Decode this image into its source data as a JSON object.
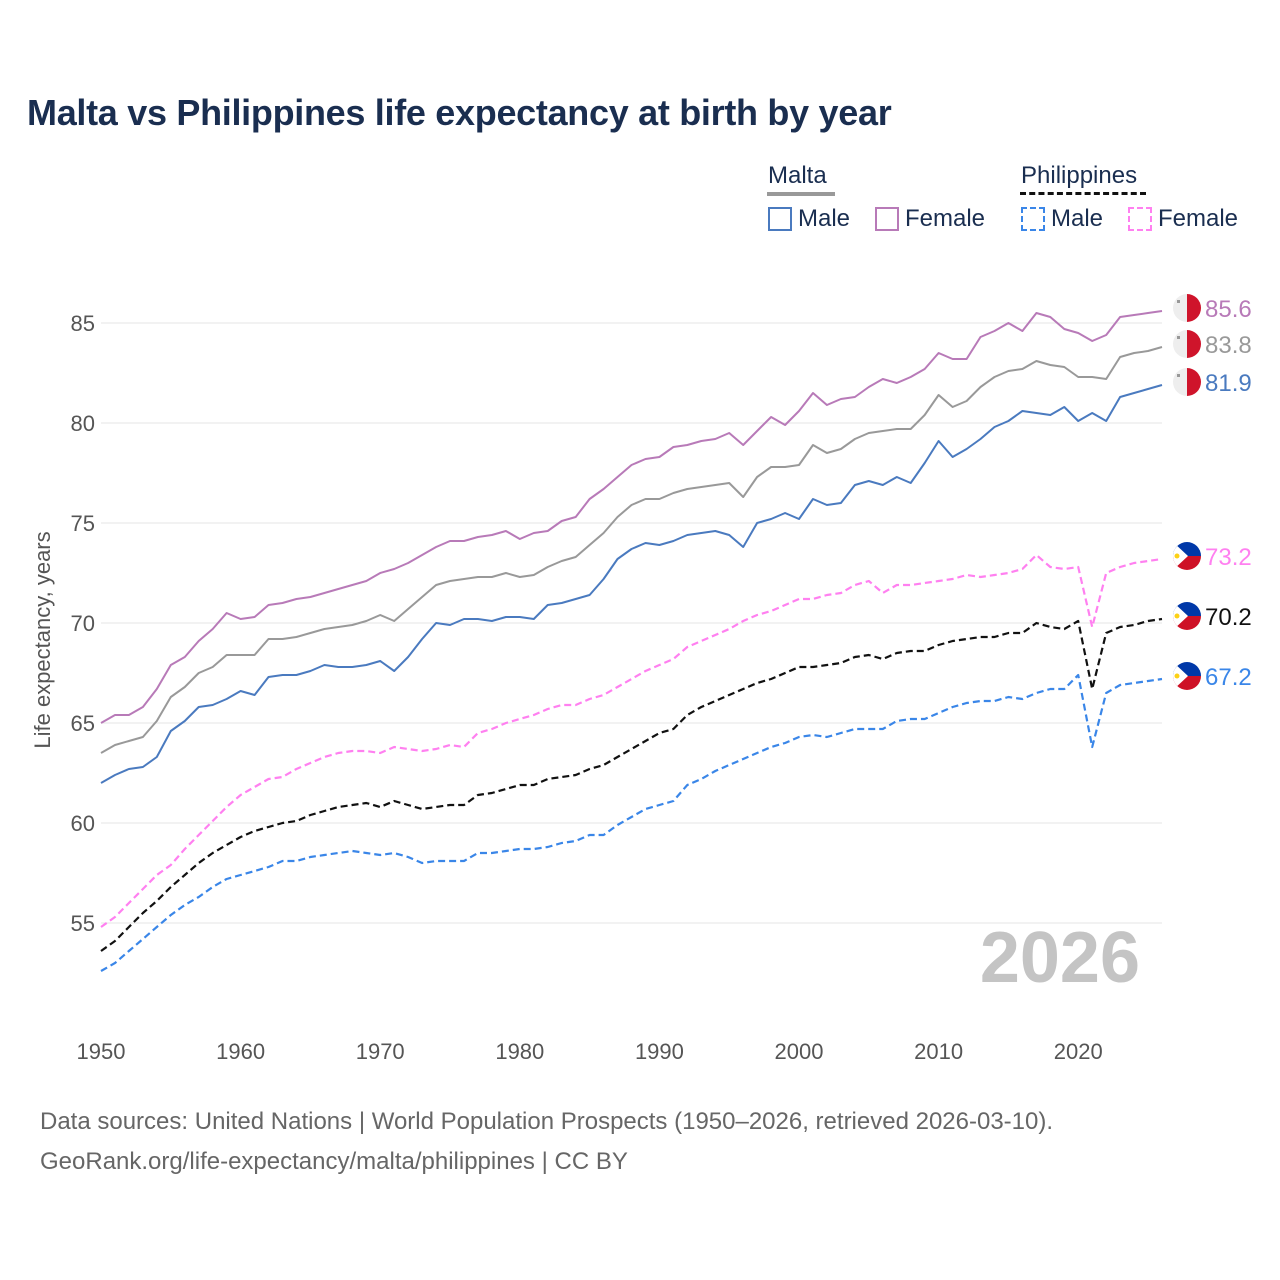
{
  "title": "Malta vs Philippines life expectancy at birth by year",
  "legend": {
    "groups": [
      {
        "name": "Malta",
        "underline_color": "#999999",
        "underline_style": "solid",
        "items": [
          {
            "label": "Male",
            "color": "#4a7abf",
            "style": "solid"
          },
          {
            "label": "Female",
            "color": "#b87ab8",
            "style": "solid"
          }
        ]
      },
      {
        "name": "Philippines",
        "underline_color": "#111111",
        "underline_style": "dashed",
        "items": [
          {
            "label": "Male",
            "color": "#3a86e8",
            "style": "dashed"
          },
          {
            "label": "Female",
            "color": "#ff80f0",
            "style": "dashed"
          }
        ]
      }
    ]
  },
  "chart_data": {
    "type": "line",
    "title": "Malta vs Philippines life expectancy at birth by year",
    "xlabel": "",
    "ylabel": "Life expectancy, years",
    "xlim": [
      1950,
      2026
    ],
    "ylim": [
      50.5,
      88
    ],
    "yticks": [
      55,
      60,
      65,
      70,
      75,
      80,
      85
    ],
    "xticks": [
      1950,
      1960,
      1970,
      1980,
      1990,
      2000,
      2010,
      2020
    ],
    "grid": true,
    "year_watermark": "2026",
    "x": [
      1950,
      1951,
      1952,
      1953,
      1954,
      1955,
      1956,
      1957,
      1958,
      1959,
      1960,
      1961,
      1962,
      1963,
      1964,
      1965,
      1966,
      1967,
      1968,
      1969,
      1970,
      1971,
      1972,
      1973,
      1974,
      1975,
      1976,
      1977,
      1978,
      1979,
      1980,
      1981,
      1982,
      1983,
      1984,
      1985,
      1986,
      1987,
      1988,
      1989,
      1990,
      1991,
      1992,
      1993,
      1994,
      1995,
      1996,
      1997,
      1998,
      1999,
      2000,
      2001,
      2002,
      2003,
      2004,
      2005,
      2006,
      2007,
      2008,
      2009,
      2010,
      2011,
      2012,
      2013,
      2014,
      2015,
      2016,
      2017,
      2018,
      2019,
      2020,
      2021,
      2022,
      2023,
      2024,
      2025,
      2026
    ],
    "series": [
      {
        "name": "Malta Female",
        "country": "Malta",
        "sex": "Female",
        "color": "#b87ab8",
        "dashed": false,
        "end_label": "85.6",
        "flag": "malta",
        "values": [
          65.0,
          65.4,
          65.4,
          65.8,
          66.7,
          67.9,
          68.3,
          69.1,
          69.7,
          70.5,
          70.2,
          70.3,
          70.9,
          71.0,
          71.2,
          71.3,
          71.5,
          71.7,
          71.9,
          72.1,
          72.5,
          72.7,
          73.0,
          73.4,
          73.8,
          74.1,
          74.1,
          74.3,
          74.4,
          74.6,
          74.2,
          74.5,
          74.6,
          75.1,
          75.3,
          76.2,
          76.7,
          77.3,
          77.9,
          78.2,
          78.3,
          78.8,
          78.9,
          79.1,
          79.2,
          79.5,
          78.9,
          79.6,
          80.3,
          79.9,
          80.6,
          81.5,
          80.9,
          81.2,
          81.3,
          81.8,
          82.2,
          82.0,
          82.3,
          82.7,
          83.5,
          83.2,
          83.2,
          84.3,
          84.6,
          85.0,
          84.6,
          85.5,
          85.3,
          84.7,
          84.5,
          84.1,
          84.4,
          85.3,
          85.4,
          85.5,
          85.6
        ]
      },
      {
        "name": "Malta Total",
        "country": "Malta",
        "sex": "Total",
        "color": "#999999",
        "dashed": false,
        "end_label": "83.8",
        "flag": "malta",
        "values": [
          63.5,
          63.9,
          64.1,
          64.3,
          65.1,
          66.3,
          66.8,
          67.5,
          67.8,
          68.4,
          68.4,
          68.4,
          69.2,
          69.2,
          69.3,
          69.5,
          69.7,
          69.8,
          69.9,
          70.1,
          70.4,
          70.1,
          70.7,
          71.3,
          71.9,
          72.1,
          72.2,
          72.3,
          72.3,
          72.5,
          72.3,
          72.4,
          72.8,
          73.1,
          73.3,
          73.9,
          74.5,
          75.3,
          75.9,
          76.2,
          76.2,
          76.5,
          76.7,
          76.8,
          76.9,
          77.0,
          76.3,
          77.3,
          77.8,
          77.8,
          77.9,
          78.9,
          78.5,
          78.7,
          79.2,
          79.5,
          79.6,
          79.7,
          79.7,
          80.4,
          81.4,
          80.8,
          81.1,
          81.8,
          82.3,
          82.6,
          82.7,
          83.1,
          82.9,
          82.8,
          82.3,
          82.3,
          82.2,
          83.3,
          83.5,
          83.6,
          83.8
        ]
      },
      {
        "name": "Malta Male",
        "country": "Malta",
        "sex": "Male",
        "color": "#4a7abf",
        "dashed": false,
        "end_label": "81.9",
        "flag": "malta",
        "values": [
          62.0,
          62.4,
          62.7,
          62.8,
          63.3,
          64.6,
          65.1,
          65.8,
          65.9,
          66.2,
          66.6,
          66.4,
          67.3,
          67.4,
          67.4,
          67.6,
          67.9,
          67.8,
          67.8,
          67.9,
          68.1,
          67.6,
          68.3,
          69.2,
          70.0,
          69.9,
          70.2,
          70.2,
          70.1,
          70.3,
          70.3,
          70.2,
          70.9,
          71.0,
          71.2,
          71.4,
          72.2,
          73.2,
          73.7,
          74.0,
          73.9,
          74.1,
          74.4,
          74.5,
          74.6,
          74.4,
          73.8,
          75.0,
          75.2,
          75.5,
          75.2,
          76.2,
          75.9,
          76.0,
          76.9,
          77.1,
          76.9,
          77.3,
          77.0,
          78.0,
          79.1,
          78.3,
          78.7,
          79.2,
          79.8,
          80.1,
          80.6,
          80.5,
          80.4,
          80.8,
          80.1,
          80.5,
          80.1,
          81.3,
          81.5,
          81.7,
          81.9
        ]
      },
      {
        "name": "Philippines Female",
        "country": "Philippines",
        "sex": "Female",
        "color": "#ff80f0",
        "dashed": true,
        "end_label": "73.2",
        "flag": "philippines",
        "values": [
          54.8,
          55.3,
          56.0,
          56.7,
          57.4,
          57.9,
          58.7,
          59.4,
          60.1,
          60.8,
          61.4,
          61.8,
          62.2,
          62.3,
          62.7,
          63.0,
          63.3,
          63.5,
          63.6,
          63.6,
          63.5,
          63.8,
          63.7,
          63.6,
          63.7,
          63.9,
          63.8,
          64.5,
          64.7,
          65.0,
          65.2,
          65.4,
          65.7,
          65.9,
          65.9,
          66.2,
          66.4,
          66.8,
          67.2,
          67.6,
          67.9,
          68.2,
          68.8,
          69.1,
          69.4,
          69.7,
          70.1,
          70.4,
          70.6,
          70.9,
          71.2,
          71.2,
          71.4,
          71.5,
          71.9,
          72.1,
          71.5,
          71.9,
          71.9,
          72.0,
          72.1,
          72.2,
          72.4,
          72.3,
          72.4,
          72.5,
          72.7,
          73.4,
          72.8,
          72.7,
          72.8,
          69.8,
          72.5,
          72.8,
          73.0,
          73.1,
          73.2
        ]
      },
      {
        "name": "Philippines Total",
        "country": "Philippines",
        "sex": "Total",
        "color": "#111111",
        "dashed": true,
        "end_label": "70.2",
        "flag": "philippines",
        "values": [
          53.6,
          54.1,
          54.8,
          55.5,
          56.1,
          56.8,
          57.4,
          58.0,
          58.5,
          58.9,
          59.3,
          59.6,
          59.8,
          60.0,
          60.1,
          60.4,
          60.6,
          60.8,
          60.9,
          61.0,
          60.8,
          61.1,
          60.9,
          60.7,
          60.8,
          60.9,
          60.9,
          61.4,
          61.5,
          61.7,
          61.9,
          61.9,
          62.2,
          62.3,
          62.4,
          62.7,
          62.9,
          63.3,
          63.7,
          64.1,
          64.5,
          64.7,
          65.4,
          65.8,
          66.1,
          66.4,
          66.7,
          67.0,
          67.2,
          67.5,
          67.8,
          67.8,
          67.9,
          68.0,
          68.3,
          68.4,
          68.2,
          68.5,
          68.6,
          68.6,
          68.9,
          69.1,
          69.2,
          69.3,
          69.3,
          69.5,
          69.5,
          70.0,
          69.8,
          69.7,
          70.1,
          66.7,
          69.5,
          69.8,
          69.9,
          70.1,
          70.2
        ]
      },
      {
        "name": "Philippines Male",
        "country": "Philippines",
        "sex": "Male",
        "color": "#3a86e8",
        "dashed": true,
        "end_label": "67.2",
        "flag": "philippines",
        "values": [
          52.6,
          53.0,
          53.6,
          54.2,
          54.8,
          55.4,
          55.9,
          56.3,
          56.8,
          57.2,
          57.4,
          57.6,
          57.8,
          58.1,
          58.1,
          58.3,
          58.4,
          58.5,
          58.6,
          58.5,
          58.4,
          58.5,
          58.3,
          58.0,
          58.1,
          58.1,
          58.1,
          58.5,
          58.5,
          58.6,
          58.7,
          58.7,
          58.8,
          59.0,
          59.1,
          59.4,
          59.4,
          59.9,
          60.3,
          60.7,
          60.9,
          61.1,
          61.9,
          62.2,
          62.6,
          62.9,
          63.2,
          63.5,
          63.8,
          64.0,
          64.3,
          64.4,
          64.3,
          64.5,
          64.7,
          64.7,
          64.7,
          65.1,
          65.2,
          65.2,
          65.5,
          65.8,
          66.0,
          66.1,
          66.1,
          66.3,
          66.2,
          66.5,
          66.7,
          66.7,
          67.4,
          63.8,
          66.5,
          66.9,
          67.0,
          67.1,
          67.2
        ]
      }
    ]
  },
  "source": {
    "line1": "Data sources: United Nations | World Population Prospects (1950–2026, retrieved 2026-03-10).",
    "line2": "GeoRank.org/life-expectancy/malta/philippines | CC BY"
  }
}
